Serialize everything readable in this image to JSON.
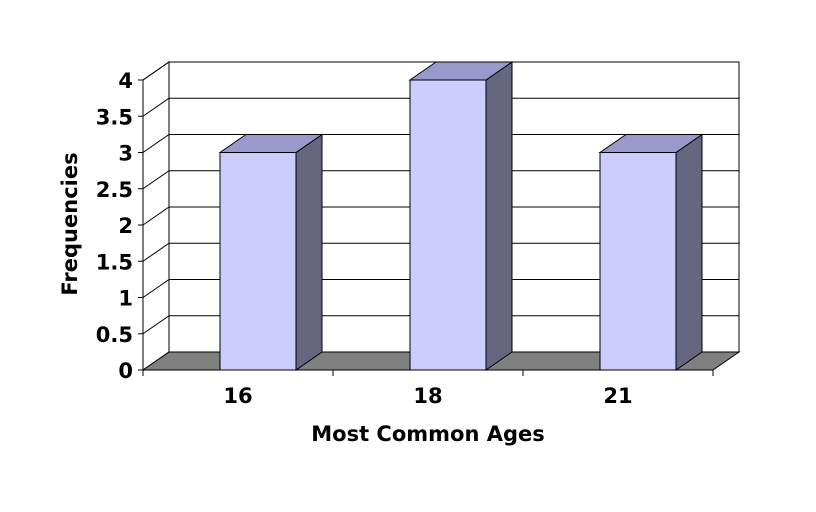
{
  "chart_data": {
    "type": "bar",
    "title": "",
    "xlabel": "Most Common Ages",
    "ylabel": "Frequencies",
    "categories": [
      "16",
      "18",
      "21"
    ],
    "series": [
      {
        "values": [
          3,
          4,
          3
        ]
      }
    ],
    "ylim": [
      0,
      4
    ],
    "yticks": [
      "0",
      "0.5",
      "1",
      "1.5",
      "2",
      "2.5",
      "3",
      "3.5",
      "4"
    ],
    "grid": true,
    "legend": "none",
    "three_d": true,
    "colors": {
      "bar_front": "#CCCCFF",
      "bar_side": "#666680",
      "bar_top": "#9999CC",
      "floor": "#808080",
      "wall": "#FFFFFF",
      "outline": "#000000"
    }
  }
}
